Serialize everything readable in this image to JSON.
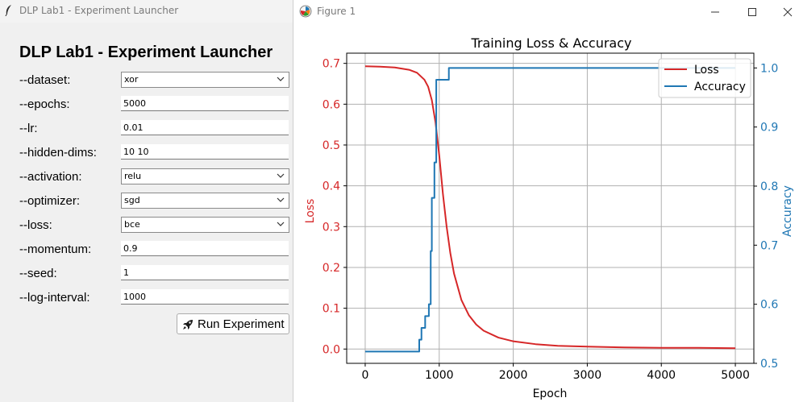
{
  "launcher": {
    "window_title": "DLP Lab1 - Experiment Launcher",
    "heading": "DLP Lab1 - Experiment Launcher",
    "fields": [
      {
        "label": "--dataset:",
        "kind": "combo",
        "value": "xor"
      },
      {
        "label": "--epochs:",
        "kind": "entry",
        "value": "5000"
      },
      {
        "label": "--lr:",
        "kind": "entry",
        "value": "0.01"
      },
      {
        "label": "--hidden-dims:",
        "kind": "entry",
        "value": "10 10"
      },
      {
        "label": "--activation:",
        "kind": "combo",
        "value": "relu"
      },
      {
        "label": "--optimizer:",
        "kind": "combo",
        "value": "sgd"
      },
      {
        "label": "--loss:",
        "kind": "combo",
        "value": "bce"
      },
      {
        "label": "--momentum:",
        "kind": "entry",
        "value": "0.9"
      },
      {
        "label": "--seed:",
        "kind": "entry",
        "value": "1"
      },
      {
        "label": "--log-interval:",
        "kind": "entry",
        "value": "1000"
      }
    ],
    "run_button": "Run Experiment",
    "run_icon": "rocket-icon"
  },
  "figure": {
    "window_title": "Figure 1",
    "controls": [
      "minimize-icon",
      "maximize-icon",
      "close-icon"
    ]
  },
  "colors": {
    "loss": "#d62728",
    "accuracy": "#1f77b4",
    "grid": "#b0b0b0"
  },
  "chart_data": {
    "type": "line",
    "title": "Training Loss & Accuracy",
    "xlabel": "Epoch",
    "ylabel_left": "Loss",
    "ylabel_right": "Accuracy",
    "xlim": [
      -250,
      5250
    ],
    "ylim_left": [
      -0.035,
      0.725
    ],
    "ylim_right": [
      0.5,
      1.025
    ],
    "xticks": [
      0,
      1000,
      2000,
      3000,
      4000,
      5000
    ],
    "yticks_left": [
      0.0,
      0.1,
      0.2,
      0.3,
      0.4,
      0.5,
      0.6,
      0.7
    ],
    "yticks_right": [
      0.5,
      0.6,
      0.7,
      0.8,
      0.9,
      1.0
    ],
    "grid": true,
    "legend": {
      "position": "top-right",
      "entries": [
        "Loss",
        "Accuracy"
      ]
    },
    "series": [
      {
        "name": "Loss",
        "axis": "left",
        "x": [
          0,
          200,
          400,
          600,
          700,
          800,
          850,
          900,
          950,
          1000,
          1050,
          1100,
          1150,
          1200,
          1300,
          1400,
          1500,
          1600,
          1800,
          2000,
          2300,
          2600,
          3000,
          3500,
          4000,
          4500,
          5000
        ],
        "values": [
          0.693,
          0.692,
          0.69,
          0.684,
          0.677,
          0.66,
          0.643,
          0.61,
          0.555,
          0.475,
          0.38,
          0.3,
          0.235,
          0.185,
          0.12,
          0.083,
          0.06,
          0.045,
          0.028,
          0.019,
          0.012,
          0.008,
          0.006,
          0.004,
          0.003,
          0.003,
          0.002
        ]
      },
      {
        "name": "Accuracy",
        "axis": "right",
        "step": true,
        "x": [
          0,
          730,
          760,
          810,
          860,
          885,
          900,
          935,
          960,
          1130,
          5000
        ],
        "values": [
          0.52,
          0.54,
          0.56,
          0.58,
          0.6,
          0.69,
          0.78,
          0.84,
          0.98,
          1.0,
          1.0
        ]
      }
    ]
  }
}
